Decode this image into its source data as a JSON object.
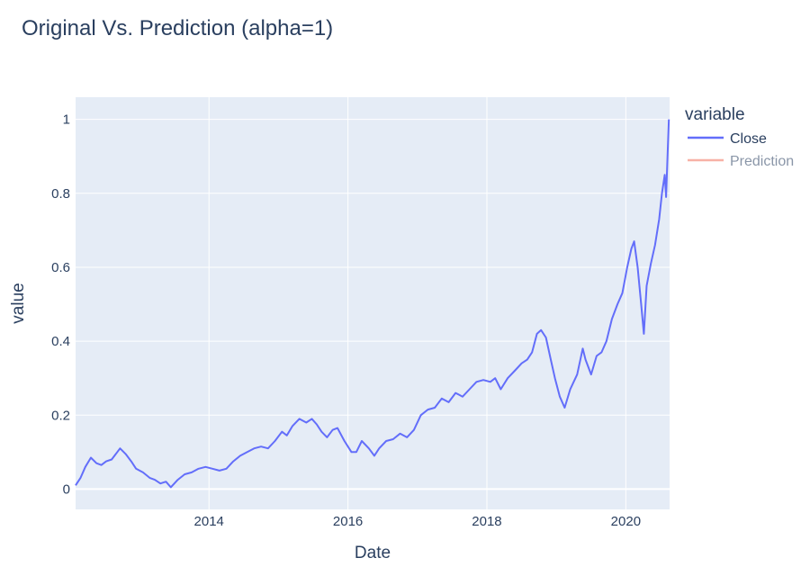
{
  "chart_data": {
    "type": "line",
    "title": "Original Vs. Prediction (alpha=1)",
    "xlabel": "Date",
    "ylabel": "value",
    "legend_title": "variable",
    "legend_position": "right",
    "grid": true,
    "plot_bgcolor": "#e5ecf6",
    "xlim": [
      2012.08,
      2020.63
    ],
    "ylim": [
      -0.055,
      1.06
    ],
    "xticks": [
      2014,
      2016,
      2018,
      2020
    ],
    "xtick_labels": [
      "2014",
      "2016",
      "2018",
      "2020"
    ],
    "yticks": [
      0,
      0.2,
      0.4,
      0.6,
      0.8,
      1
    ],
    "ytick_labels": [
      "0",
      "0.2",
      "0.4",
      "0.6",
      "0.8",
      "1"
    ],
    "series": [
      {
        "name": "Close",
        "color": "#636efa",
        "x": [
          2012.08,
          2012.15,
          2012.22,
          2012.3,
          2012.38,
          2012.45,
          2012.52,
          2012.6,
          2012.68,
          2012.72,
          2012.8,
          2012.88,
          2012.95,
          2013.05,
          2013.15,
          2013.22,
          2013.3,
          2013.38,
          2013.45,
          2013.55,
          2013.65,
          2013.75,
          2013.85,
          2013.95,
          2014.05,
          2014.15,
          2014.25,
          2014.35,
          2014.45,
          2014.55,
          2014.65,
          2014.75,
          2014.85,
          2014.95,
          2015.05,
          2015.12,
          2015.2,
          2015.3,
          2015.4,
          2015.48,
          2015.55,
          2015.62,
          2015.7,
          2015.78,
          2015.85,
          2015.95,
          2016.05,
          2016.12,
          2016.2,
          2016.3,
          2016.38,
          2016.45,
          2016.55,
          2016.65,
          2016.75,
          2016.85,
          2016.95,
          2017.05,
          2017.15,
          2017.25,
          2017.35,
          2017.45,
          2017.55,
          2017.65,
          2017.75,
          2017.85,
          2017.95,
          2018.05,
          2018.12,
          2018.2,
          2018.3,
          2018.4,
          2018.5,
          2018.58,
          2018.65,
          2018.72,
          2018.78,
          2018.85,
          2018.92,
          2018.98,
          2019.05,
          2019.12,
          2019.2,
          2019.3,
          2019.38,
          2019.42,
          2019.5,
          2019.58,
          2019.65,
          2019.72,
          2019.8,
          2019.88,
          2019.95,
          2020.02,
          2020.08,
          2020.12,
          2020.17,
          2020.22,
          2020.26,
          2020.3,
          2020.36,
          2020.42,
          2020.48,
          2020.52,
          2020.56,
          2020.58,
          2020.6,
          2020.62
        ],
        "y": [
          0.01,
          0.03,
          0.06,
          0.085,
          0.07,
          0.065,
          0.075,
          0.08,
          0.1,
          0.11,
          0.095,
          0.075,
          0.055,
          0.045,
          0.03,
          0.025,
          0.015,
          0.02,
          0.005,
          0.025,
          0.04,
          0.045,
          0.055,
          0.06,
          0.055,
          0.05,
          0.055,
          0.075,
          0.09,
          0.1,
          0.11,
          0.115,
          0.11,
          0.13,
          0.155,
          0.145,
          0.17,
          0.19,
          0.18,
          0.19,
          0.175,
          0.155,
          0.14,
          0.16,
          0.165,
          0.13,
          0.1,
          0.1,
          0.13,
          0.11,
          0.09,
          0.11,
          0.13,
          0.135,
          0.15,
          0.14,
          0.16,
          0.2,
          0.215,
          0.22,
          0.245,
          0.235,
          0.26,
          0.25,
          0.27,
          0.29,
          0.295,
          0.29,
          0.3,
          0.27,
          0.3,
          0.32,
          0.34,
          0.35,
          0.37,
          0.42,
          0.43,
          0.41,
          0.35,
          0.3,
          0.25,
          0.22,
          0.27,
          0.31,
          0.38,
          0.35,
          0.31,
          0.36,
          0.37,
          0.4,
          0.46,
          0.5,
          0.53,
          0.6,
          0.65,
          0.67,
          0.6,
          0.5,
          0.42,
          0.55,
          0.61,
          0.66,
          0.73,
          0.8,
          0.85,
          0.79,
          0.9,
          1.0
        ]
      },
      {
        "name": "Prediction",
        "color": "#ef553b",
        "opacity": 0.45,
        "x": [],
        "y": []
      }
    ]
  }
}
